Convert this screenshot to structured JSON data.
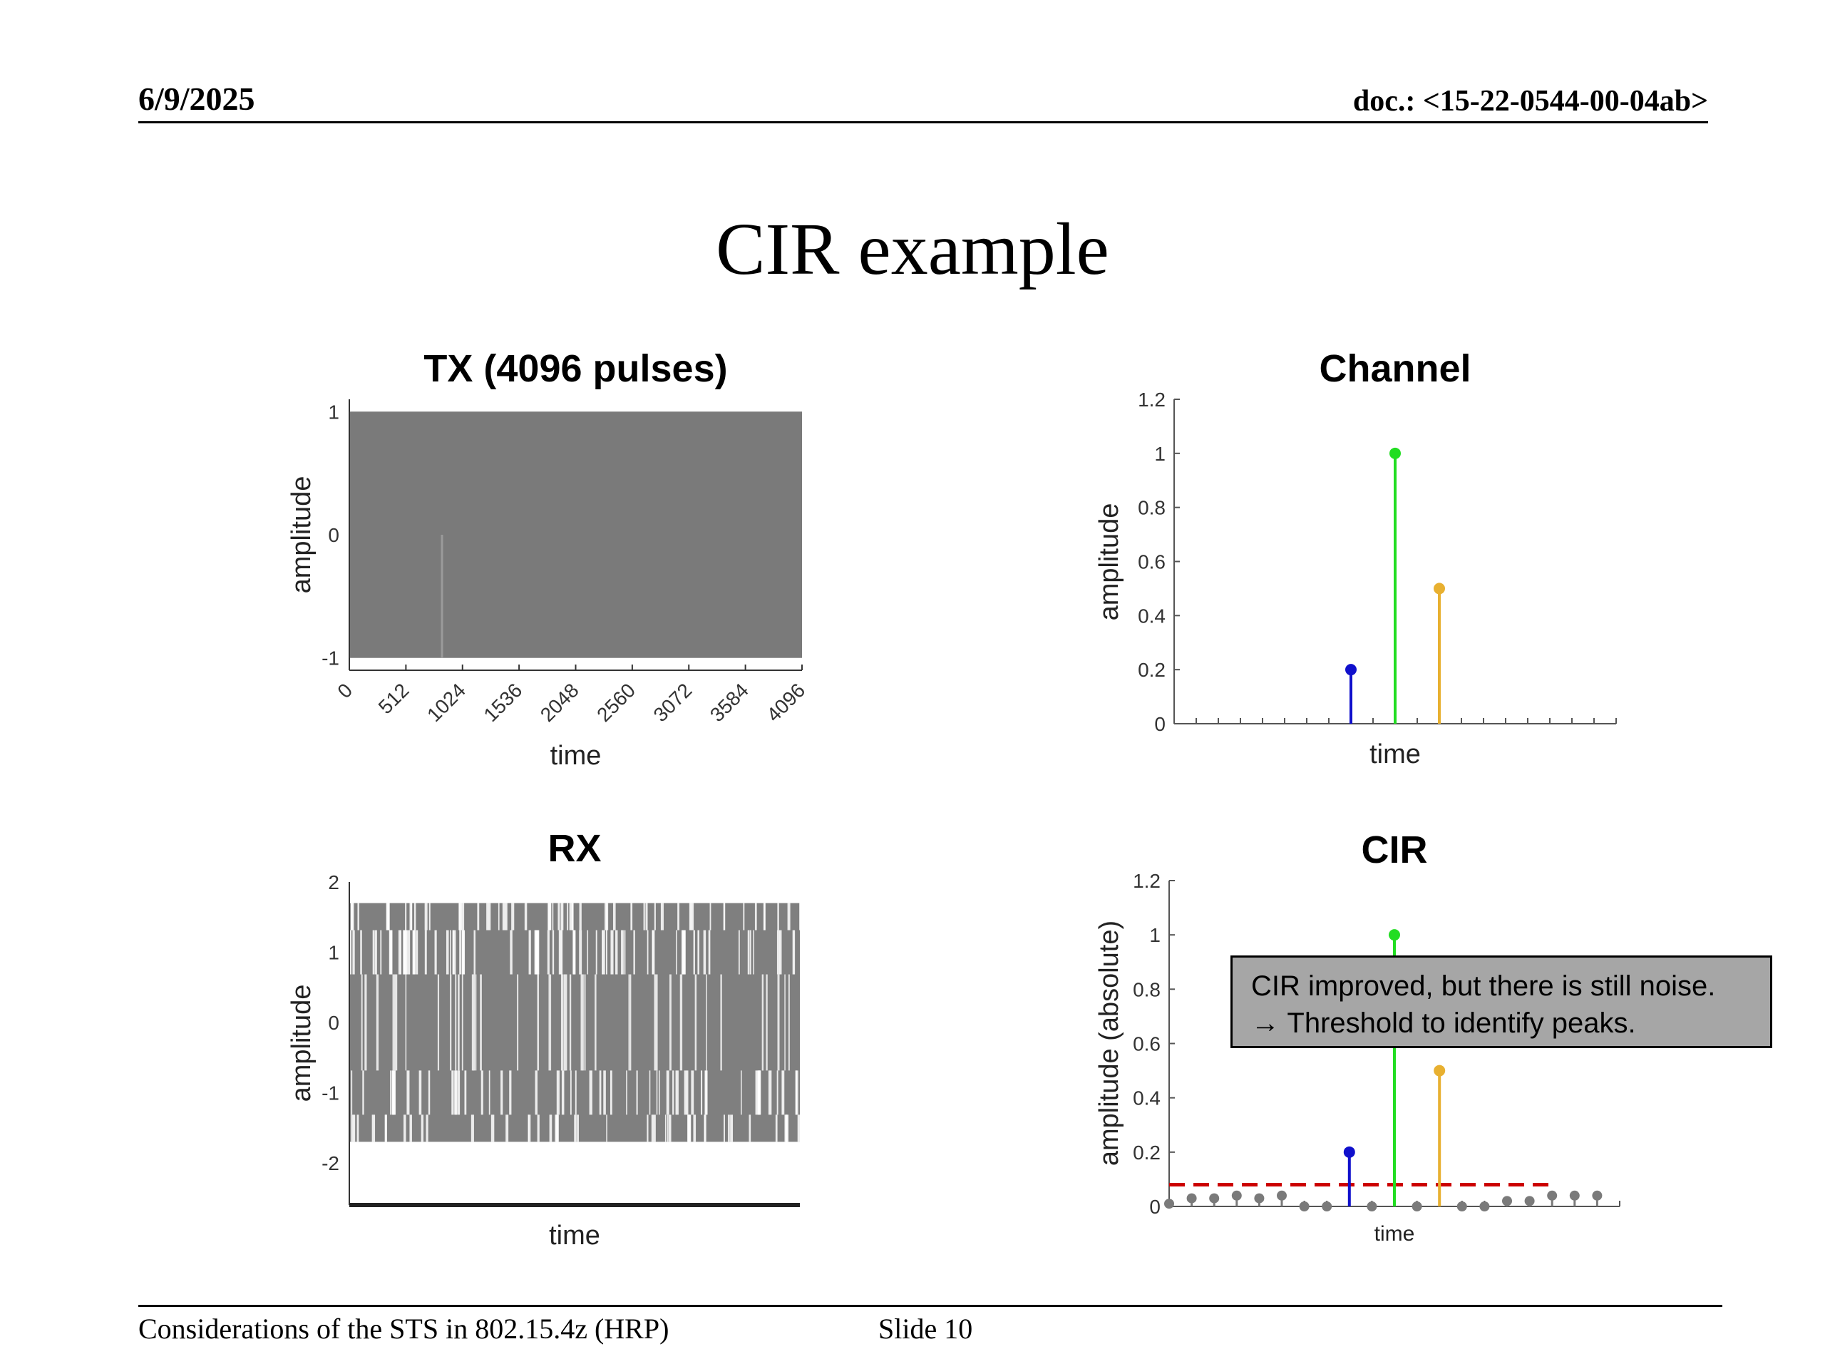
{
  "header": {
    "date": "6/9/2025",
    "doc": "doc.: <15-22-0544-00-04ab>"
  },
  "slide_title": "CIR example",
  "footer": {
    "left": "Considerations of the STS in 802.15.4z (HRP)",
    "slide": "Slide 10"
  },
  "callout": {
    "line1": "CIR improved, but there is still noise.",
    "line2": "→ Threshold to identify peaks."
  },
  "colors": {
    "tx_fill": "#7a7a7a",
    "rx_fill": "#7f7f7f",
    "blue": "#1010cc",
    "green": "#22dd22",
    "orange": "#e8b030",
    "noise": "#7a7a7a",
    "threshold": "#cc0000",
    "callout_bg": "#a6a6a6"
  },
  "chart_data": [
    {
      "id": "tx",
      "type": "line",
      "title": "TX (4096 pulses)",
      "xlabel": "time",
      "ylabel": "amplitude",
      "xlim": [
        0,
        4096
      ],
      "ylim": [
        -1.1,
        1.1
      ],
      "xticks": [
        "0",
        "512",
        "1024",
        "1536",
        "2048",
        "2560",
        "3072",
        "3584",
        "4096"
      ],
      "yticks": [
        "1",
        "0",
        "-1"
      ],
      "description_values": {
        "min": -1,
        "max": 1,
        "pulses": 4096
      }
    },
    {
      "id": "channel",
      "type": "stem",
      "title": "Channel",
      "xlabel": "time",
      "ylabel": "amplitude",
      "ylim": [
        0,
        1.2
      ],
      "yticks": [
        "0",
        "0.2",
        "0.4",
        "0.6",
        "0.8",
        "1",
        "1.2"
      ],
      "n_ticks": 20,
      "series": [
        {
          "x": 8,
          "value": 0.2,
          "color": "#1010cc"
        },
        {
          "x": 10,
          "value": 1.0,
          "color": "#22dd22"
        },
        {
          "x": 12,
          "value": 0.5,
          "color": "#e8b030"
        }
      ]
    },
    {
      "id": "rx",
      "type": "line",
      "title": "RX",
      "xlabel": "time",
      "ylabel": "amplitude",
      "ylim": [
        -2.6,
        2
      ],
      "yticks": [
        "2",
        "1",
        "0",
        "-1",
        "-2"
      ],
      "envelope": [
        -1.7,
        1.7
      ]
    },
    {
      "id": "cir",
      "type": "stem",
      "title": "CIR",
      "xlabel": "time",
      "ylabel": "amplitude (absolute)",
      "ylim": [
        0,
        1.2
      ],
      "yticks": [
        "0",
        "0.2",
        "0.4",
        "0.6",
        "0.8",
        "1",
        "1.2"
      ],
      "threshold": 0.08,
      "noise": [
        0.01,
        0.03,
        0.03,
        0.04,
        0.03,
        0.04,
        0.0,
        0.0,
        null,
        0.0,
        null,
        0.0,
        null,
        0.0,
        0.0,
        0.02,
        0.02,
        0.04,
        0.04,
        0.04
      ],
      "series": [
        {
          "x": 8,
          "value": 0.2,
          "color": "#1010cc"
        },
        {
          "x": 10,
          "value": 1.0,
          "color": "#22dd22"
        },
        {
          "x": 12,
          "value": 0.5,
          "color": "#e8b030"
        }
      ]
    }
  ]
}
